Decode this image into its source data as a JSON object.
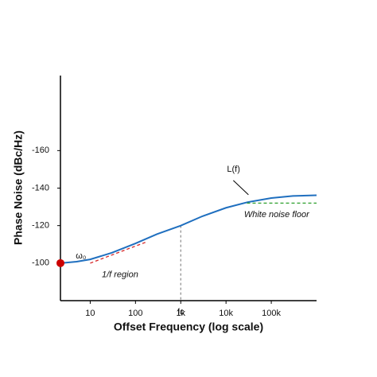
{
  "chart_data": {
    "type": "line",
    "xlabel": "Offset Frequency (log scale)",
    "ylabel": "Phase Noise (dBc/Hz)",
    "xscale": "log",
    "xlim": [
      2.2,
      1000000
    ],
    "ylim": [
      -80,
      -200
    ],
    "xticks": [
      10,
      100,
      {
        "value": 1000,
        "label": "1k"
      },
      {
        "value": 10000,
        "label": "10k"
      },
      {
        "value": 100000,
        "label": "100k"
      }
    ],
    "yticks": [
      -100,
      -120,
      -140,
      -160
    ],
    "grid": false,
    "series": [
      {
        "color": "#1f6fbf",
        "dash": false,
        "x": [
          2.2,
          5,
          10,
          30,
          100,
          300,
          1000,
          3000,
          10000,
          30000,
          100000,
          300000,
          1000000
        ],
        "values": [
          -100,
          -100.8,
          -102,
          -105.5,
          -110.5,
          -115.5,
          -120,
          -125,
          -129.5,
          -132.5,
          -134.7,
          -135.8,
          -136.2
        ]
      },
      {
        "color": "#d62728",
        "dash": true,
        "x": [
          10,
          180
        ],
        "values": [
          -100,
          -111.4
        ]
      },
      {
        "color": "#2ca02c",
        "dash": true,
        "x": [
          29000,
          1000000
        ],
        "values": [
          -132,
          -132
        ]
      }
    ],
    "points": [
      {
        "x": 2.2,
        "value": -100,
        "color": "#cc0000"
      }
    ],
    "vlines": [
      {
        "x": 1000,
        "value": -120,
        "color": "#888888"
      }
    ],
    "annotations": [
      {
        "text": "L(f)",
        "x": 10500,
        "value": -150,
        "style": "normal",
        "pointer": true
      },
      {
        "text": "White noise floor",
        "x": 25000,
        "value": -125.8,
        "style": "italic",
        "pointer": false
      },
      {
        "text": "1/f region",
        "x": 18,
        "value": -93.7,
        "style": "italic",
        "pointer": false
      },
      {
        "text": "ω₀",
        "x": 4.8,
        "value": -103.8,
        "style": "normal",
        "pointer": false
      },
      {
        "text": "fc",
        "x": 1000,
        "value": -73.8,
        "style": "normal",
        "pointer": false
      }
    ]
  }
}
